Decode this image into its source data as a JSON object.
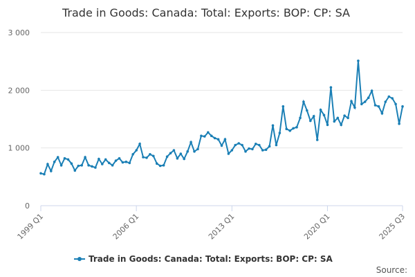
{
  "chart_data": {
    "type": "line",
    "title": "Trade in Goods: Canada: Total: Exports: BOP: CP: SA",
    "xlabel": "",
    "ylabel": "",
    "ylim": [
      0,
      3000
    ],
    "yticks": [
      0,
      1000,
      2000,
      3000
    ],
    "ytick_labels": [
      "0",
      "1 000",
      "2 000",
      "3 000"
    ],
    "xtick_labels": [
      "1999 Q1",
      "2006 Q1",
      "2013 Q1",
      "2020 Q1",
      "2025 Q3"
    ],
    "grid": true,
    "legend_position": "bottom-center",
    "series": [
      {
        "name": "Trade in Goods: Canada: Total: Exports: BOP: CP: SA",
        "color": "#1a7fb5",
        "x": [
          "1999 Q1",
          "1999 Q2",
          "1999 Q3",
          "1999 Q4",
          "2000 Q1",
          "2000 Q2",
          "2000 Q3",
          "2000 Q4",
          "2001 Q1",
          "2001 Q2",
          "2001 Q3",
          "2001 Q4",
          "2002 Q1",
          "2002 Q2",
          "2002 Q3",
          "2002 Q4",
          "2003 Q1",
          "2003 Q2",
          "2003 Q3",
          "2003 Q4",
          "2004 Q1",
          "2004 Q2",
          "2004 Q3",
          "2004 Q4",
          "2005 Q1",
          "2005 Q2",
          "2005 Q3",
          "2005 Q4",
          "2006 Q1",
          "2006 Q2",
          "2006 Q3",
          "2006 Q4",
          "2007 Q1",
          "2007 Q2",
          "2007 Q3",
          "2007 Q4",
          "2008 Q1",
          "2008 Q2",
          "2008 Q3",
          "2008 Q4",
          "2009 Q1",
          "2009 Q2",
          "2009 Q3",
          "2009 Q4",
          "2010 Q1",
          "2010 Q2",
          "2010 Q3",
          "2010 Q4",
          "2011 Q1",
          "2011 Q2",
          "2011 Q3",
          "2011 Q4",
          "2012 Q1",
          "2012 Q2",
          "2012 Q3",
          "2012 Q4",
          "2013 Q1",
          "2013 Q2",
          "2013 Q3",
          "2013 Q4",
          "2014 Q1",
          "2014 Q2",
          "2014 Q3",
          "2014 Q4",
          "2015 Q1",
          "2015 Q2",
          "2015 Q3",
          "2015 Q4",
          "2016 Q1",
          "2016 Q2",
          "2016 Q3",
          "2016 Q4",
          "2017 Q1",
          "2017 Q2",
          "2017 Q3",
          "2017 Q4",
          "2018 Q1",
          "2018 Q2",
          "2018 Q3",
          "2018 Q4",
          "2019 Q1",
          "2019 Q2",
          "2019 Q3",
          "2019 Q4",
          "2020 Q1",
          "2020 Q2",
          "2020 Q3",
          "2020 Q4",
          "2021 Q1",
          "2021 Q2",
          "2021 Q3",
          "2021 Q4",
          "2022 Q1",
          "2022 Q2",
          "2022 Q3",
          "2022 Q4",
          "2023 Q1",
          "2023 Q2",
          "2023 Q3",
          "2023 Q4",
          "2024 Q1",
          "2024 Q2",
          "2024 Q3",
          "2024 Q4",
          "2025 Q1",
          "2025 Q2",
          "2025 Q3"
        ],
        "values": [
          560,
          545,
          720,
          600,
          760,
          840,
          700,
          820,
          800,
          730,
          610,
          690,
          700,
          840,
          700,
          680,
          660,
          810,
          720,
          800,
          740,
          700,
          780,
          820,
          750,
          760,
          740,
          890,
          960,
          1070,
          840,
          830,
          890,
          860,
          730,
          690,
          700,
          850,
          910,
          960,
          820,
          900,
          810,
          940,
          1100,
          940,
          980,
          1210,
          1200,
          1270,
          1210,
          1170,
          1150,
          1040,
          1150,
          900,
          960,
          1050,
          1080,
          1050,
          940,
          990,
          980,
          1070,
          1050,
          960,
          970,
          1030,
          1390,
          1050,
          1260,
          1720,
          1330,
          1300,
          1340,
          1360,
          1520,
          1800,
          1650,
          1470,
          1550,
          1140,
          1660,
          1570,
          1400,
          2050,
          1460,
          1520,
          1400,
          1560,
          1520,
          1810,
          1700,
          2510,
          1760,
          1800,
          1870,
          1990,
          1740,
          1720,
          1600,
          1800,
          1890,
          1860,
          1760,
          1420,
          1720
        ]
      }
    ],
    "source_label": "Source:"
  }
}
